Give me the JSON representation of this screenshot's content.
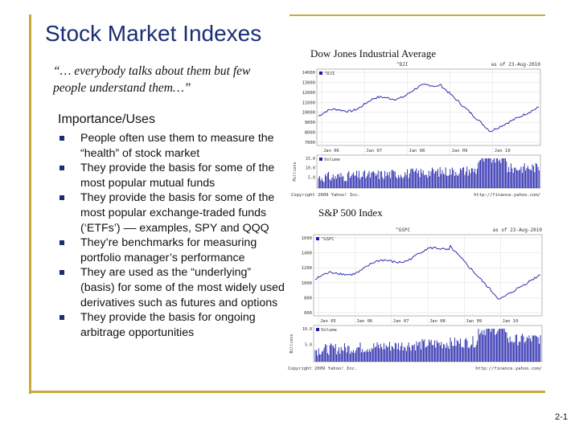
{
  "slide": {
    "title": "Stock Market Indexes",
    "quote": "“… everybody talks about them but few people understand them…”",
    "section_heading": "Importance/Uses",
    "bullets": [
      "People often use them to measure the “health” of stock market",
      "They provide the basis for some of the most popular mutual funds",
      "They provide the basis for some of the most popular exchange-traded funds (‘ETFs’) –– examples, SPY and QQQ",
      "They’re benchmarks for measuring portfolio manager’s performance",
      "They are used as the “underlying” (basis) for some of the most widely used derivatives such as futures and options",
      "They provide the basis for ongoing arbitrage opportunities"
    ],
    "page_number": "2-1",
    "accent_color": "#c9a93a",
    "title_color": "#1b2e75"
  },
  "charts": [
    {
      "caption": "Dow Jones Industrial Average",
      "ticker": "^DJI",
      "date_label": "as of 23-Aug-2010",
      "legend_price": "^DJI",
      "legend_volume": "Volume",
      "x_labels": [
        "Jan 06",
        "Jan 07",
        "Jan 08",
        "Jan 09",
        "Jan 10"
      ],
      "y_labels": [
        "14000",
        "13000",
        "12000",
        "11000",
        "10000",
        "9000",
        "8000",
        "7000"
      ],
      "vol_labels": [
        "15.0",
        "10.0",
        "5.0"
      ],
      "vol_axis_label": "Millions",
      "copyright": "Copyright 2009 Yahoo! Inc.",
      "url": "http://finance.yahoo.com/"
    },
    {
      "caption": "S&P 500 Index",
      "ticker": "^GSPC",
      "date_label": "as of 23-Aug-2010",
      "legend_price": "^GSPC",
      "legend_volume": "Volume",
      "x_labels": [
        "Jan 05",
        "Jan 06",
        "Jan 07",
        "Jan 08",
        "Jan 09",
        "Jan 10"
      ],
      "y_labels": [
        "1600",
        "1400",
        "1200",
        "1000",
        "800",
        "600"
      ],
      "vol_labels": [
        "10.0",
        "5.0"
      ],
      "vol_axis_label": "Billions",
      "copyright": "Copyright 2009 Yahoo! Inc.",
      "url": "http://finance.yahoo.com/"
    }
  ]
}
